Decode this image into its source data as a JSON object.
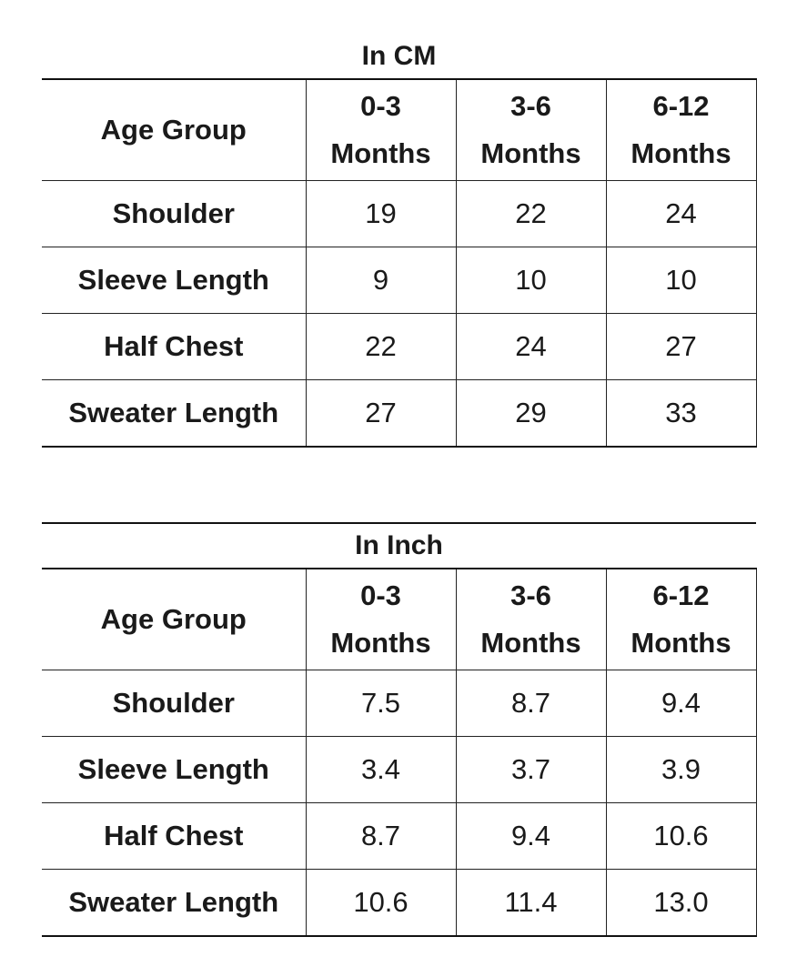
{
  "tables": [
    {
      "title": "In CM",
      "headers": {
        "row_label": "Age Group",
        "columns": [
          {
            "range": "0-3",
            "unit": "Months"
          },
          {
            "range": "3-6",
            "unit": "Months"
          },
          {
            "range": "6-12",
            "unit": "Months"
          }
        ]
      },
      "rows": [
        {
          "label": "Shoulder",
          "values": [
            "19",
            "22",
            "24"
          ]
        },
        {
          "label": "Sleeve Length",
          "values": [
            "9",
            "10",
            "10"
          ]
        },
        {
          "label": "Half Chest",
          "values": [
            "22",
            "24",
            "27"
          ]
        },
        {
          "label": "Sweater Length",
          "values": [
            "27",
            "29",
            "33"
          ]
        }
      ]
    },
    {
      "title": "In Inch",
      "headers": {
        "row_label": "Age Group",
        "columns": [
          {
            "range": "0-3",
            "unit": "Months"
          },
          {
            "range": "3-6",
            "unit": "Months"
          },
          {
            "range": "6-12",
            "unit": "Months"
          }
        ]
      },
      "rows": [
        {
          "label": "Shoulder",
          "values": [
            "7.5",
            "8.7",
            "9.4"
          ]
        },
        {
          "label": "Sleeve Length",
          "values": [
            "3.4",
            "3.7",
            "3.9"
          ]
        },
        {
          "label": "Half Chest",
          "values": [
            "8.7",
            "9.4",
            "10.6"
          ]
        },
        {
          "label": "Sweater Length",
          "values": [
            "10.6",
            "11.4",
            "13.0"
          ]
        }
      ]
    }
  ]
}
